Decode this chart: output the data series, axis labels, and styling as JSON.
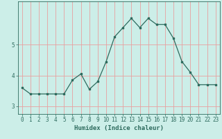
{
  "x": [
    0,
    1,
    2,
    3,
    4,
    5,
    6,
    7,
    8,
    9,
    10,
    11,
    12,
    13,
    14,
    15,
    16,
    17,
    18,
    19,
    20,
    21,
    22,
    23
  ],
  "y": [
    3.6,
    3.4,
    3.4,
    3.4,
    3.4,
    3.4,
    3.85,
    4.05,
    3.55,
    3.8,
    4.45,
    5.25,
    5.55,
    5.85,
    5.55,
    5.85,
    5.65,
    5.65,
    5.2,
    4.45,
    4.1,
    3.7,
    3.7,
    3.7
  ],
  "xlabel": "Humidex (Indice chaleur)",
  "xlim": [
    -0.5,
    23.5
  ],
  "ylim": [
    2.75,
    6.4
  ],
  "yticks": [
    3,
    4,
    5
  ],
  "xticks": [
    0,
    1,
    2,
    3,
    4,
    5,
    6,
    7,
    8,
    9,
    10,
    11,
    12,
    13,
    14,
    15,
    16,
    17,
    18,
    19,
    20,
    21,
    22,
    23
  ],
  "line_color": "#2e6b5e",
  "marker_color": "#2e6b5e",
  "bg_color": "#cceee8",
  "grid_color": "#e8a0a0",
  "axes_color": "#2e6b5e",
  "tick_color": "#2e6b5e",
  "label_color": "#2e6b5e",
  "xlabel_fontsize": 6.5,
  "tick_fontsize": 5.5
}
